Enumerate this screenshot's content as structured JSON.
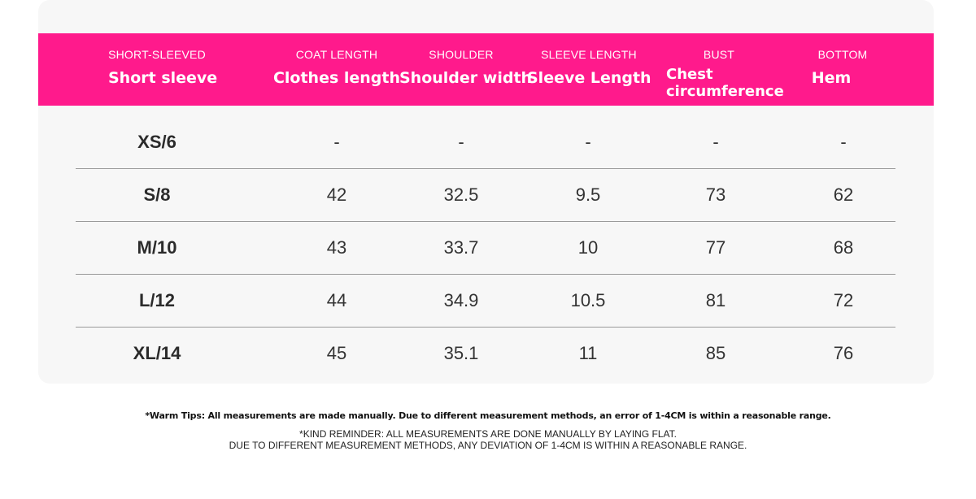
{
  "colors": {
    "header_bg": "#ff1a8c",
    "header_text": "#ffffff",
    "card_bg": "#f7f7f7",
    "divider": "#9a9a9a"
  },
  "header": [
    {
      "sub": "SHORT-SLEEVED",
      "main": "Short sleeve"
    },
    {
      "sub": "COAT LENGTH",
      "main": "Clothes length"
    },
    {
      "sub": "SHOULDER",
      "main": "Shoulder width"
    },
    {
      "sub": "SLEEVE LENGTH",
      "main": "Sleeve Length"
    },
    {
      "sub": "BUST",
      "main": "Chest circumference"
    },
    {
      "sub": "BOTTOM",
      "main": "Hem"
    }
  ],
  "rows": [
    {
      "size": "XS/6",
      "values": [
        "-",
        "-",
        "-",
        "-",
        "-"
      ]
    },
    {
      "size": "S/8",
      "values": [
        "42",
        "32.5",
        "9.5",
        "73",
        "62"
      ]
    },
    {
      "size": "M/10",
      "values": [
        "43",
        "33.7",
        "10",
        "77",
        "68"
      ]
    },
    {
      "size": "L/12",
      "values": [
        "44",
        "34.9",
        "10.5",
        "81",
        "72"
      ]
    },
    {
      "size": "XL/14",
      "values": [
        "45",
        "35.1",
        "11",
        "85",
        "76"
      ]
    }
  ],
  "notes": {
    "warm_tip": "*Warm Tips: All measurements are made manually. Due to different measurement methods, an error of 1-4CM is within a reasonable range.",
    "reminder_line1": "*KIND REMINDER: ALL MEASUREMENTS ARE DONE MANUALLY BY LAYING FLAT.",
    "reminder_line2": "DUE TO DIFFERENT MEASUREMENT METHODS, ANY DEVIATION OF 1-4CM IS WITHIN A REASONABLE RANGE."
  }
}
